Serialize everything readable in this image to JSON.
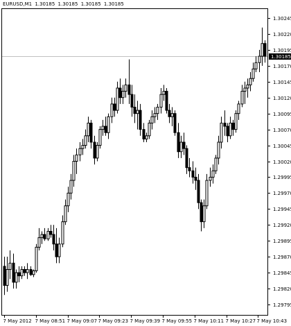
{
  "header": {
    "symbol": "EURUSD,M1",
    "open": "1.30185",
    "high": "1.30185",
    "low": "1.30185",
    "close": "1.30185"
  },
  "colors": {
    "background": "#ffffff",
    "candle": "#000000",
    "axis": "#000000",
    "price_line": "#c0c0c0",
    "price_label_bg": "#000000",
    "price_label_text": "#ffffff"
  },
  "chart_data": {
    "type": "candlestick",
    "title": "",
    "xlabel": "",
    "ylabel": "",
    "ylim": [
      1.29783,
      1.30257
    ],
    "grid": false,
    "current_price": "1.30185",
    "y_ticks": [
      "1.30245",
      "1.30220",
      "1.30195",
      "1.30170",
      "1.30145",
      "1.30120",
      "1.30095",
      "1.30070",
      "1.30045",
      "1.30020",
      "1.29995",
      "1.29970",
      "1.29945",
      "1.29920",
      "1.29895",
      "1.29870",
      "1.29845",
      "1.29820",
      "1.29795"
    ],
    "x_ticks": [
      "7 May 2012",
      "7 May 08:51",
      "7 May 09:07",
      "7 May 09:23",
      "7 May 09:39",
      "7 May 09:55",
      "7 May 10:11",
      "7 May 10:27",
      "7 May 10:43"
    ],
    "candles": [
      [
        1.29855,
        1.2987,
        1.2981,
        1.29825
      ],
      [
        1.29825,
        1.2987,
        1.29815,
        1.2985
      ],
      [
        1.2985,
        1.2988,
        1.29835,
        1.2986
      ],
      [
        1.2986,
        1.29875,
        1.2982,
        1.2983
      ],
      [
        1.2983,
        1.2985,
        1.2982,
        1.29845
      ],
      [
        1.29845,
        1.29855,
        1.2983,
        1.2984
      ],
      [
        1.2984,
        1.29855,
        1.29835,
        1.2985
      ],
      [
        1.2985,
        1.29855,
        1.2984,
        1.29845
      ],
      [
        1.29845,
        1.2986,
        1.29835,
        1.2985
      ],
      [
        1.2985,
        1.29855,
        1.2984,
        1.29842
      ],
      [
        1.29842,
        1.2985,
        1.29838,
        1.29848
      ],
      [
        1.29848,
        1.2989,
        1.29845,
        1.29885
      ],
      [
        1.29885,
        1.29915,
        1.2988,
        1.299
      ],
      [
        1.299,
        1.2991,
        1.2989,
        1.29905
      ],
      [
        1.29905,
        1.29915,
        1.29895,
        1.29898
      ],
      [
        1.29898,
        1.29915,
        1.29895,
        1.2991
      ],
      [
        1.2991,
        1.2992,
        1.299,
        1.29905
      ],
      [
        1.29905,
        1.2992,
        1.2988,
        1.2989
      ],
      [
        1.2989,
        1.29915,
        1.2986,
        1.2987
      ],
      [
        1.2987,
        1.299,
        1.2986,
        1.2989
      ],
      [
        1.2989,
        1.29935,
        1.29885,
        1.29925
      ],
      [
        1.29925,
        1.2996,
        1.2992,
        1.2995
      ],
      [
        1.2995,
        1.2998,
        1.2994,
        1.2997
      ],
      [
        1.2997,
        1.3,
        1.2996,
        1.2999
      ],
      [
        1.2999,
        1.3003,
        1.2998,
        1.3002
      ],
      [
        1.3002,
        1.3004,
        1.3,
        1.3003
      ],
      [
        1.3003,
        1.3005,
        1.3002,
        1.3004
      ],
      [
        1.3004,
        1.30055,
        1.3003,
        1.30045
      ],
      [
        1.30045,
        1.3007,
        1.3004,
        1.3006
      ],
      [
        1.3006,
        1.3009,
        1.3005,
        1.3008
      ],
      [
        1.3008,
        1.30085,
        1.3004,
        1.3005
      ],
      [
        1.3005,
        1.3006,
        1.30015,
        1.30025
      ],
      [
        1.30025,
        1.3005,
        1.3002,
        1.30045
      ],
      [
        1.30045,
        1.30075,
        1.3004,
        1.3007
      ],
      [
        1.3007,
        1.30085,
        1.3006,
        1.30075
      ],
      [
        1.30075,
        1.3009,
        1.3006,
        1.30065
      ],
      [
        1.30065,
        1.30095,
        1.30055,
        1.3009
      ],
      [
        1.3009,
        1.3012,
        1.3008,
        1.3011
      ],
      [
        1.3011,
        1.3012,
        1.3009,
        1.301
      ],
      [
        1.301,
        1.30145,
        1.30095,
        1.30135
      ],
      [
        1.30135,
        1.3015,
        1.3011,
        1.3012
      ],
      [
        1.3012,
        1.3014,
        1.3011,
        1.3013
      ],
      [
        1.3013,
        1.3015,
        1.3012,
        1.3014
      ],
      [
        1.3014,
        1.3018,
        1.3011,
        1.30125
      ],
      [
        1.30125,
        1.3014,
        1.3009,
        1.30105
      ],
      [
        1.30105,
        1.30125,
        1.3008,
        1.30095
      ],
      [
        1.30095,
        1.30115,
        1.3007,
        1.301
      ],
      [
        1.301,
        1.3011,
        1.3006,
        1.3007
      ],
      [
        1.3007,
        1.3008,
        1.3005,
        1.30055
      ],
      [
        1.30055,
        1.30065,
        1.3005,
        1.3006
      ],
      [
        1.3006,
        1.30085,
        1.30055,
        1.3008
      ],
      [
        1.3008,
        1.301,
        1.3007,
        1.3009
      ],
      [
        1.3009,
        1.30105,
        1.3008,
        1.30095
      ],
      [
        1.30095,
        1.3011,
        1.30085,
        1.30105
      ],
      [
        1.30105,
        1.30135,
        1.30095,
        1.30125
      ],
      [
        1.30125,
        1.3014,
        1.30115,
        1.3013
      ],
      [
        1.3013,
        1.30135,
        1.30095,
        1.301
      ],
      [
        1.301,
        1.3011,
        1.3008,
        1.3009
      ],
      [
        1.3009,
        1.30105,
        1.30075,
        1.30095
      ],
      [
        1.30095,
        1.301,
        1.3006,
        1.30065
      ],
      [
        1.30065,
        1.3008,
        1.30025,
        1.30035
      ],
      [
        1.30035,
        1.3006,
        1.30025,
        1.3005
      ],
      [
        1.3005,
        1.30065,
        1.3003,
        1.3004
      ],
      [
        1.3004,
        1.30045,
        1.3,
        1.3001
      ],
      [
        1.3001,
        1.30025,
        1.29995,
        1.30005
      ],
      [
        1.30005,
        1.3002,
        1.29985,
        1.29995
      ],
      [
        1.29995,
        1.3001,
        1.29975,
        1.2999
      ],
      [
        1.2999,
        1.3,
        1.29945,
        1.29955
      ],
      [
        1.29955,
        1.2996,
        1.2991,
        1.29925
      ],
      [
        1.29925,
        1.2996,
        1.29915,
        1.2995
      ],
      [
        1.2995,
        1.3,
        1.29945,
        1.2999
      ],
      [
        1.2999,
        1.3001,
        1.2998,
        1.29995
      ],
      [
        1.29995,
        1.30015,
        1.29985,
        1.30005
      ],
      [
        1.30005,
        1.3003,
        1.3,
        1.30025
      ],
      [
        1.30025,
        1.3006,
        1.30015,
        1.3005
      ],
      [
        1.3005,
        1.3009,
        1.3004,
        1.3008
      ],
      [
        1.3008,
        1.301,
        1.3006,
        1.30075
      ],
      [
        1.30075,
        1.3008,
        1.3005,
        1.3006
      ],
      [
        1.3006,
        1.3009,
        1.30055,
        1.3008
      ],
      [
        1.3008,
        1.30085,
        1.3006,
        1.3007
      ],
      [
        1.3007,
        1.301,
        1.30065,
        1.30095
      ],
      [
        1.30095,
        1.30115,
        1.30085,
        1.3011
      ],
      [
        1.3011,
        1.3014,
        1.30105,
        1.3013
      ],
      [
        1.3013,
        1.30145,
        1.3011,
        1.30135
      ],
      [
        1.30135,
        1.3015,
        1.3012,
        1.3014
      ],
      [
        1.3014,
        1.3016,
        1.3013,
        1.3015
      ],
      [
        1.3015,
        1.30175,
        1.30145,
        1.30165
      ],
      [
        1.30165,
        1.30185,
        1.3016,
        1.30175
      ],
      [
        1.30175,
        1.30195,
        1.3016,
        1.30185
      ],
      [
        1.30185,
        1.3023,
        1.3017,
        1.30205
      ],
      [
        1.30205,
        1.3021,
        1.30175,
        1.30185
      ]
    ]
  }
}
